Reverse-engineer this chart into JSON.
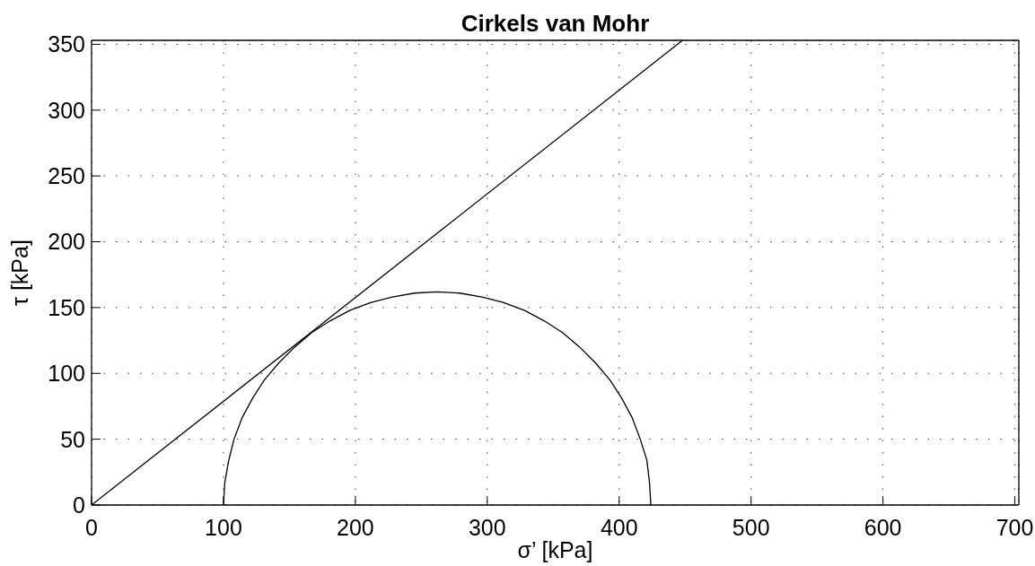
{
  "chart_data": {
    "type": "line",
    "title": "Cirkels van Mohr",
    "xlabel": "σ’ [kPa]",
    "ylabel": "τ [kPa]",
    "xlim": [
      0,
      703
    ],
    "ylim": [
      0,
      353
    ],
    "xticks": [
      0,
      100,
      200,
      300,
      400,
      500,
      600,
      700
    ],
    "yticks": [
      0,
      50,
      100,
      150,
      200,
      250,
      300,
      350
    ],
    "grid": true,
    "series": [
      {
        "color": "#000000",
        "x": [
          0,
          448
        ],
        "values": [
          0,
          353
        ]
      },
      {
        "color": "#000000",
        "x": [
          100,
          101,
          104,
          108,
          114,
          122,
          131,
          142,
          154,
          167,
          181,
          196,
          212,
          228,
          245,
          262,
          279,
          296,
          312,
          328,
          343,
          357,
          370,
          382,
          393,
          402,
          410,
          416,
          421,
          423,
          424
        ],
        "values": [
          0,
          17,
          34,
          50,
          66,
          81,
          95,
          108,
          120,
          131,
          140,
          148,
          154,
          158,
          161,
          162,
          161,
          158,
          154,
          148,
          140,
          131,
          120,
          108,
          95,
          81,
          66,
          50,
          34,
          17,
          0
        ]
      }
    ]
  }
}
